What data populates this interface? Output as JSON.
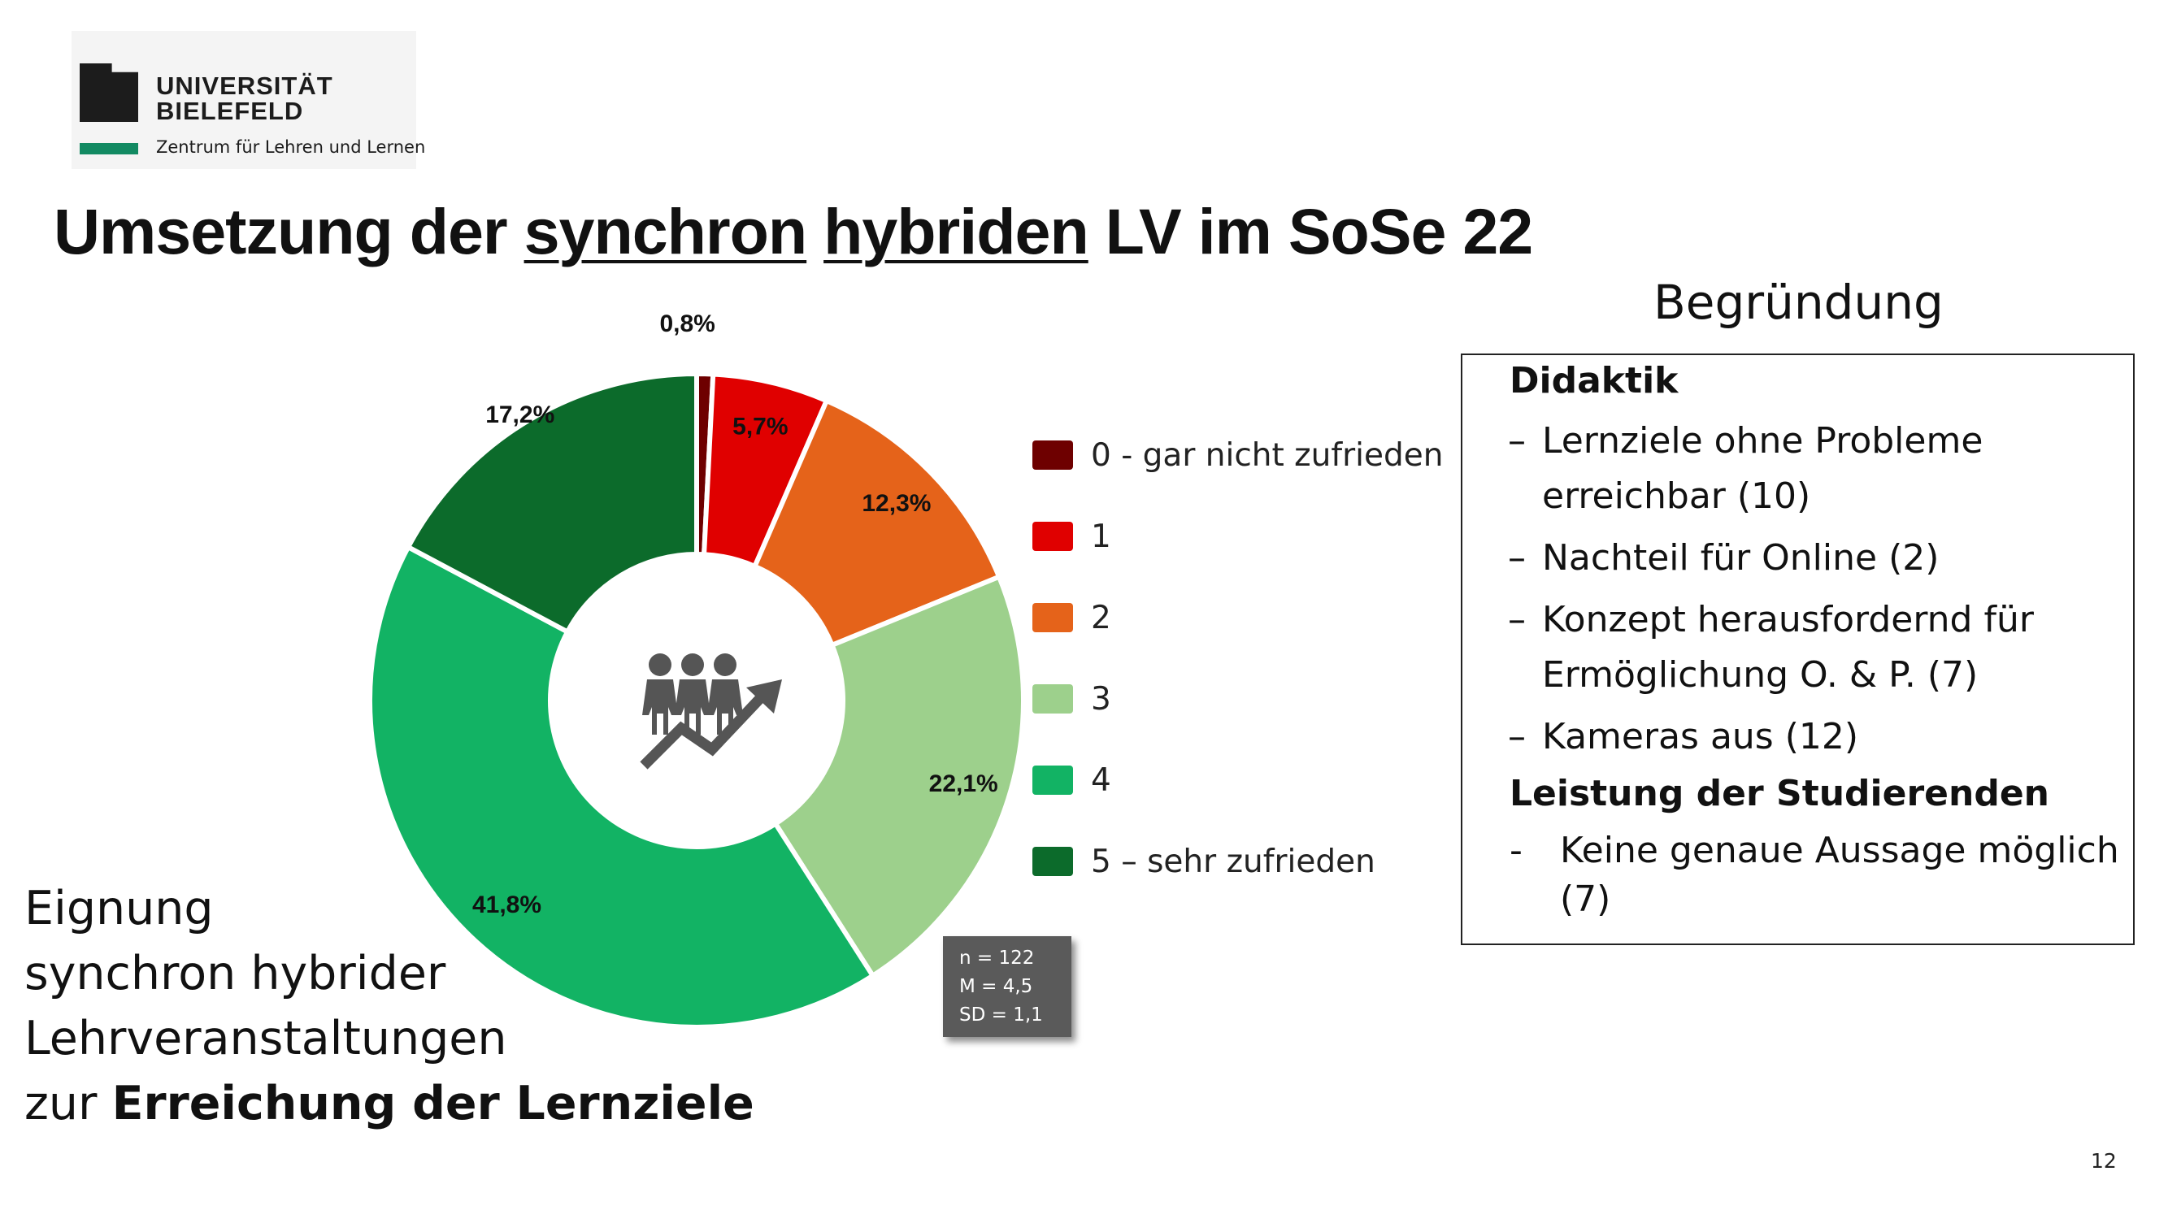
{
  "logo": {
    "name_line1": "UNIVERSITÄT",
    "name_line2": "BIELEFELD",
    "subtitle": "Zentrum für Lehren und Lernen"
  },
  "title": {
    "part1": "Umsetzung der ",
    "underlined1": "synchron",
    "space": " ",
    "underlined2": "hybriden",
    "part2": " LV im SoSe 22"
  },
  "chart_data": {
    "type": "pie",
    "categories": [
      "0 - gar nicht zufrieden",
      "1",
      "2",
      "3",
      "4",
      "5 – sehr zufrieden"
    ],
    "values": [
      0.8,
      5.7,
      12.3,
      22.1,
      41.8,
      17.2
    ],
    "data_labels": [
      "0,8%",
      "5,7%",
      "12,3%",
      "22,1%",
      "41,8%",
      "17,2%"
    ],
    "colors": [
      "#6e0000",
      "#e00000",
      "#e5631a",
      "#9dd08c",
      "#12b364",
      "#0c6b2b"
    ],
    "legend_placement": "right",
    "center_icon": "people-growth-icon"
  },
  "stats": {
    "n": "n = 122",
    "m": "M = 4,5",
    "sd": "SD = 1,1"
  },
  "caption": {
    "line1": "Eignung",
    "line2": "synchron hybrider",
    "line3": "Lehrveranstaltungen",
    "line4_prefix": "zur ",
    "line4_bold": "Erreichung der Lernziele"
  },
  "reasons": {
    "title": "Begründung",
    "section1": "Didaktik",
    "items1": [
      {
        "dash": "–",
        "line1": "Lernziele ohne Probleme",
        "line2": "erreichbar (10)"
      },
      {
        "dash": "–",
        "line1": "Nachteil für Online (2)"
      },
      {
        "dash": "–",
        "line1": "Konzept herausfordernd für",
        "line2": "Ermöglichung O. & P. (7)"
      },
      {
        "dash": "–",
        "line1": "Kameras aus (12)"
      }
    ],
    "section2": "Leistung der Studierenden",
    "items2": [
      {
        "dash": "-",
        "line1": "Keine genaue Aussage möglich",
        "line2": "(7)"
      }
    ]
  },
  "page_number": "12"
}
